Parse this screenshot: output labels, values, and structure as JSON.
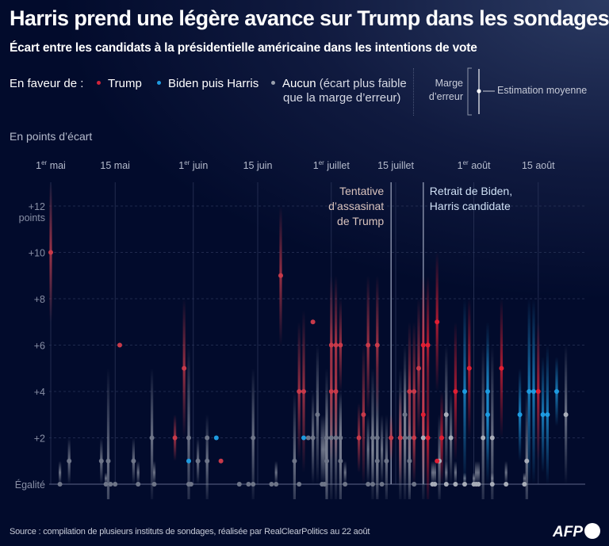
{
  "title": "Harris prend une légère avance sur Trump dans les sondages",
  "subtitle": "Écart entre les candidats à la présidentielle américaine dans les intentions de vote",
  "legend": {
    "label": "En faveur de :",
    "items": [
      {
        "name": "Trump",
        "color": "#d0243a"
      },
      {
        "name": "Biden puis Harris",
        "color": "#1e9be0"
      },
      {
        "name": "Aucun",
        "note_line1": "(écart plus faible",
        "note_line2": "que la marge d’erreur)",
        "color": "#9aa0ad"
      }
    ],
    "error_margin_line1": "Marge",
    "error_margin_line2": "d’erreur",
    "mean_estimate": "Estimation moyenne"
  },
  "y_axis_title": "En points d’écart",
  "source": "Source : compilation de plusieurs instituts de sondages, réalisée par RealClearPolitics au 22 août",
  "logo": "AFP",
  "colors": {
    "trump": "#c83a4a",
    "trump_recent": "#e01f33",
    "harris": "#1e9be0",
    "none": "#8a90a0",
    "grid": "#2a3458",
    "event_line": "#8b93ad"
  },
  "chart_data": {
    "type": "scatter",
    "title": "Écart entre les candidats à la présidentielle américaine dans les intentions de vote",
    "xlabel": "",
    "ylabel": "En points d’écart",
    "ylim": [
      0,
      12
    ],
    "x_unit": "days since 1 May",
    "xlim": [
      0,
      118
    ],
    "x_ticks": [
      {
        "day": 0,
        "label": "1",
        "sup": "er",
        "rest": " mai"
      },
      {
        "day": 14,
        "label": "15 mai",
        "sup": "",
        "rest": ""
      },
      {
        "day": 31,
        "label": "1",
        "sup": "er",
        "rest": " juin"
      },
      {
        "day": 45,
        "label": "15 juin",
        "sup": "",
        "rest": ""
      },
      {
        "day": 61,
        "label": "1",
        "sup": "er",
        "rest": " juillet"
      },
      {
        "day": 75,
        "label": "15 juillet",
        "sup": "",
        "rest": ""
      },
      {
        "day": 92,
        "label": "1",
        "sup": "er",
        "rest": " août"
      },
      {
        "day": 106,
        "label": "15 août",
        "sup": "",
        "rest": ""
      }
    ],
    "y_ticks": [
      {
        "value": 12,
        "label": "+12",
        "label2": "points"
      },
      {
        "value": 10,
        "label": "+10"
      },
      {
        "value": 8,
        "label": "+8"
      },
      {
        "value": 6,
        "label": "+6"
      },
      {
        "value": 4,
        "label": "+4"
      },
      {
        "value": 2,
        "label": "+2"
      },
      {
        "value": 0,
        "label": "Égalité"
      }
    ],
    "grid": true,
    "annotations": [
      {
        "day": 74,
        "lines": [
          "Tentative",
          "d’assasinat",
          "de Trump"
        ],
        "align": "right",
        "color": "#d9c3bd"
      },
      {
        "day": 81,
        "lines": [
          "Retrait de Biden,",
          "Harris candidate"
        ],
        "align": "left",
        "color": "#cfe0f5"
      }
    ],
    "series": [
      {
        "name": "Trump",
        "points": [
          {
            "day": 0,
            "value": 10,
            "moe": 3
          },
          {
            "day": 15,
            "value": 6,
            "moe": 0.3
          },
          {
            "day": 27,
            "value": 2,
            "moe": 1
          },
          {
            "day": 29,
            "value": 5,
            "moe": 3
          },
          {
            "day": 37,
            "value": 1,
            "moe": 0.2
          },
          {
            "day": 50,
            "value": 9,
            "moe": 3
          },
          {
            "day": 57,
            "value": 7,
            "moe": 0.2
          },
          {
            "day": 54,
            "value": 4,
            "moe": 3
          },
          {
            "day": 55,
            "value": 4,
            "moe": 3.5
          },
          {
            "day": 61,
            "value": 6,
            "moe": 3
          },
          {
            "day": 62,
            "value": 6,
            "moe": 3
          },
          {
            "day": 61,
            "value": 4,
            "moe": 3
          },
          {
            "day": 62,
            "value": 4,
            "moe": 3
          },
          {
            "day": 63,
            "value": 6,
            "moe": 2
          },
          {
            "day": 67,
            "value": 2,
            "moe": 1.5
          },
          {
            "day": 68,
            "value": 3,
            "moe": 3
          },
          {
            "day": 69,
            "value": 6,
            "moe": 3
          },
          {
            "day": 71,
            "value": 6,
            "moe": 3
          },
          {
            "day": 74,
            "value": 2,
            "moe": 1
          },
          {
            "day": 76,
            "value": 2,
            "moe": 2
          },
          {
            "day": 78,
            "value": 4,
            "moe": 3
          },
          {
            "day": 79,
            "value": 4,
            "moe": 3
          },
          {
            "day": 80,
            "value": 5,
            "moe": 3
          },
          {
            "day": 79,
            "value": 2,
            "moe": 2
          },
          {
            "day": 81,
            "value": 6,
            "moe": 3
          },
          {
            "day": 82,
            "value": 6,
            "moe": 3
          },
          {
            "day": 81,
            "value": 3,
            "moe": 3
          },
          {
            "day": 82,
            "value": 2,
            "moe": 3
          },
          {
            "day": 84,
            "value": 7,
            "moe": 3
          },
          {
            "day": 84,
            "value": 1,
            "moe": 0.2
          },
          {
            "day": 85,
            "value": 2,
            "moe": 2
          },
          {
            "day": 88,
            "value": 4,
            "moe": 3
          },
          {
            "day": 91,
            "value": 5,
            "moe": 3
          },
          {
            "day": 98,
            "value": 5,
            "moe": 3
          },
          {
            "day": 106,
            "value": 4,
            "moe": 3
          }
        ]
      },
      {
        "name": "Biden puis Harris",
        "points": [
          {
            "day": 30,
            "value": 1,
            "moe": 0.2
          },
          {
            "day": 36,
            "value": 2,
            "moe": 0.2
          },
          {
            "day": 55,
            "value": 2,
            "moe": 0.2
          },
          {
            "day": 90,
            "value": 4,
            "moe": 4
          },
          {
            "day": 95,
            "value": 4,
            "moe": 3
          },
          {
            "day": 95,
            "value": 3,
            "moe": 3
          },
          {
            "day": 102,
            "value": 3,
            "moe": 2
          },
          {
            "day": 104,
            "value": 4,
            "moe": 4
          },
          {
            "day": 105,
            "value": 4,
            "moe": 4
          },
          {
            "day": 107,
            "value": 3,
            "moe": 2.5
          },
          {
            "day": 108,
            "value": 3,
            "moe": 3
          },
          {
            "day": 110,
            "value": 4,
            "moe": 1.5
          }
        ]
      },
      {
        "name": "Aucun",
        "points": [
          {
            "day": 2,
            "value": 0,
            "moe": 1
          },
          {
            "day": 4,
            "value": 1,
            "moe": 1
          },
          {
            "day": 11,
            "value": 1,
            "moe": 1
          },
          {
            "day": 12,
            "value": 0,
            "moe": 0.5
          },
          {
            "day": 12.5,
            "value": 1,
            "moe": 4
          },
          {
            "day": 13,
            "value": 0,
            "moe": 0.3
          },
          {
            "day": 14,
            "value": 0,
            "moe": 0.3
          },
          {
            "day": 18,
            "value": 1,
            "moe": 1
          },
          {
            "day": 19,
            "value": 0,
            "moe": 1
          },
          {
            "day": 22,
            "value": 2,
            "moe": 3
          },
          {
            "day": 22.5,
            "value": 0,
            "moe": 1
          },
          {
            "day": 30,
            "value": 2,
            "moe": 4
          },
          {
            "day": 30,
            "value": 0,
            "moe": 0.3
          },
          {
            "day": 30.5,
            "value": 0,
            "moe": 0.3
          },
          {
            "day": 32,
            "value": 1,
            "moe": 1
          },
          {
            "day": 34,
            "value": 1,
            "moe": 2
          },
          {
            "day": 34,
            "value": 2,
            "moe": 0.3
          },
          {
            "day": 41,
            "value": 0,
            "moe": 0.3
          },
          {
            "day": 43,
            "value": 0,
            "moe": 0.3
          },
          {
            "day": 44,
            "value": 0,
            "moe": 0.3
          },
          {
            "day": 44,
            "value": 2,
            "moe": 3
          },
          {
            "day": 48,
            "value": 0,
            "moe": 0.3
          },
          {
            "day": 49,
            "value": 0,
            "moe": 1
          },
          {
            "day": 53,
            "value": 1,
            "moe": 3
          },
          {
            "day": 54,
            "value": 0,
            "moe": 0.3
          },
          {
            "day": 56,
            "value": 2,
            "moe": 0.3
          },
          {
            "day": 57,
            "value": 2,
            "moe": 2
          },
          {
            "day": 58,
            "value": 3,
            "moe": 3
          },
          {
            "day": 59,
            "value": 0,
            "moe": 3
          },
          {
            "day": 59.5,
            "value": 0,
            "moe": 3
          },
          {
            "day": 60,
            "value": 2,
            "moe": 3
          },
          {
            "day": 61,
            "value": 2,
            "moe": 3
          },
          {
            "day": 62,
            "value": 2,
            "moe": 3
          },
          {
            "day": 60,
            "value": 1,
            "moe": 3
          },
          {
            "day": 63,
            "value": 1,
            "moe": 3
          },
          {
            "day": 63,
            "value": 2,
            "moe": 2
          },
          {
            "day": 64,
            "value": 0,
            "moe": 1
          },
          {
            "day": 69,
            "value": 0,
            "moe": 3
          },
          {
            "day": 70,
            "value": 0,
            "moe": 3
          },
          {
            "day": 70,
            "value": 2,
            "moe": 3
          },
          {
            "day": 71,
            "value": 2,
            "moe": 3
          },
          {
            "day": 71,
            "value": 1,
            "moe": 2
          },
          {
            "day": 72,
            "value": 0,
            "moe": 3
          },
          {
            "day": 73,
            "value": 1,
            "moe": 2
          },
          {
            "day": 76,
            "value": 2,
            "moe": 3
          },
          {
            "day": 77,
            "value": 2,
            "moe": 3
          },
          {
            "day": 77,
            "value": 3,
            "moe": 3
          },
          {
            "day": 78,
            "value": 1,
            "moe": 2
          },
          {
            "day": 78,
            "value": 2,
            "moe": 3
          },
          {
            "day": 79,
            "value": 0,
            "moe": 0.3
          },
          {
            "day": 81,
            "value": 2,
            "moe": 3
          },
          {
            "day": 83,
            "value": 0,
            "moe": 1
          },
          {
            "day": 83.5,
            "value": 0,
            "moe": 1
          },
          {
            "day": 84.5,
            "value": 1,
            "moe": 2
          },
          {
            "day": 86,
            "value": 3,
            "moe": 3
          },
          {
            "day": 86,
            "value": 0,
            "moe": 1
          },
          {
            "day": 87,
            "value": 2,
            "moe": 2
          },
          {
            "day": 88,
            "value": 0,
            "moe": 1
          },
          {
            "day": 90,
            "value": 0,
            "moe": 0.5
          },
          {
            "day": 92,
            "value": 0,
            "moe": 0.5
          },
          {
            "day": 92.5,
            "value": 0,
            "moe": 1
          },
          {
            "day": 93,
            "value": 0,
            "moe": 1
          },
          {
            "day": 94,
            "value": 2,
            "moe": 4
          },
          {
            "day": 96,
            "value": 2,
            "moe": 4
          },
          {
            "day": 96,
            "value": 0,
            "moe": 0.5
          },
          {
            "day": 99,
            "value": 0,
            "moe": 1
          },
          {
            "day": 103,
            "value": 0,
            "moe": 0.5
          },
          {
            "day": 103.5,
            "value": 1,
            "moe": 3
          },
          {
            "day": 112,
            "value": 3,
            "moe": 3
          }
        ]
      }
    ]
  }
}
